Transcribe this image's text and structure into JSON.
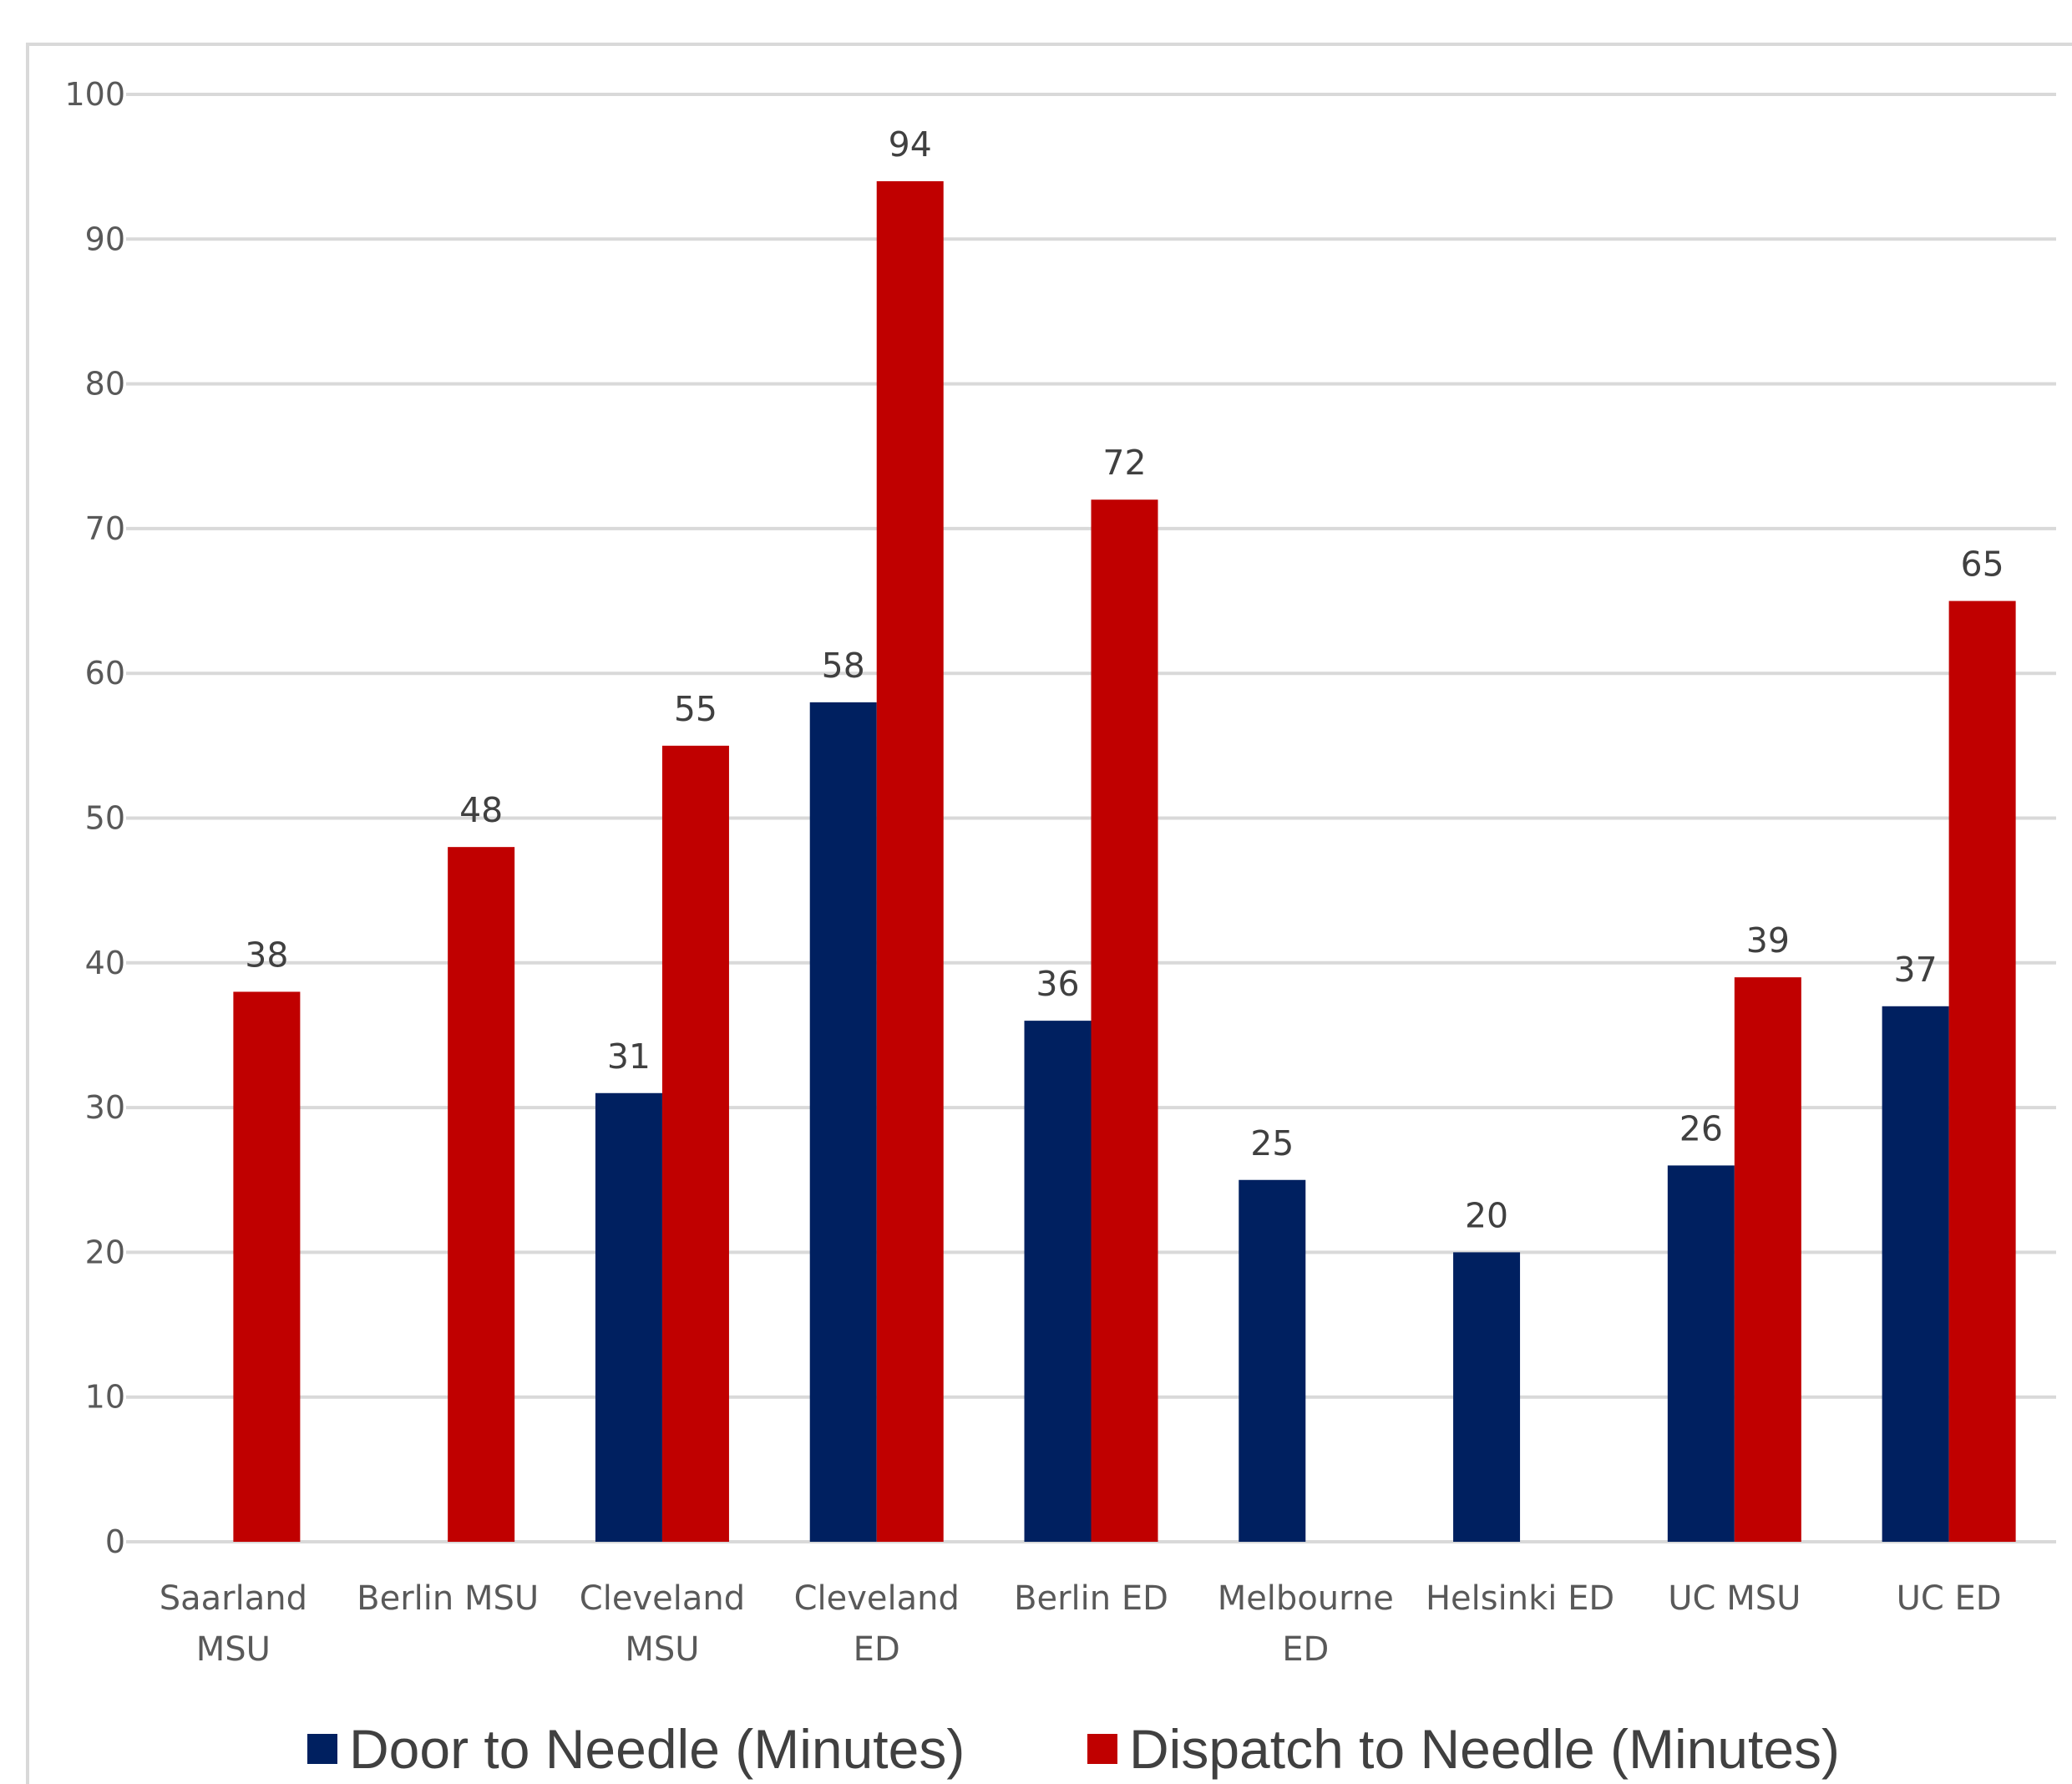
{
  "chart_data": {
    "type": "bar",
    "categories": [
      [
        "Saarland",
        "MSU"
      ],
      [
        "Berlin MSU"
      ],
      [
        "Cleveland",
        "MSU"
      ],
      [
        "Cleveland",
        "ED"
      ],
      [
        "Berlin ED"
      ],
      [
        "Melbourne",
        "ED"
      ],
      [
        "Helsinki ED"
      ],
      [
        "UC MSU"
      ],
      [
        "UC ED"
      ]
    ],
    "series": [
      {
        "name": "Door to Needle (Minutes)",
        "color": "#002060",
        "values": [
          null,
          null,
          31,
          58,
          36,
          25,
          20,
          26,
          37
        ]
      },
      {
        "name": "Dispatch to Needle (Minutes)",
        "color": "#c00000",
        "values": [
          38,
          48,
          55,
          94,
          72,
          null,
          null,
          39,
          65
        ]
      }
    ],
    "ylim": [
      0,
      100
    ],
    "yticks": [
      0,
      10,
      20,
      30,
      40,
      50,
      60,
      70,
      80,
      90,
      100
    ],
    "grid": true,
    "legend_position": "bottom",
    "data_labels": true,
    "title": "",
    "xlabel": "",
    "ylabel": ""
  }
}
